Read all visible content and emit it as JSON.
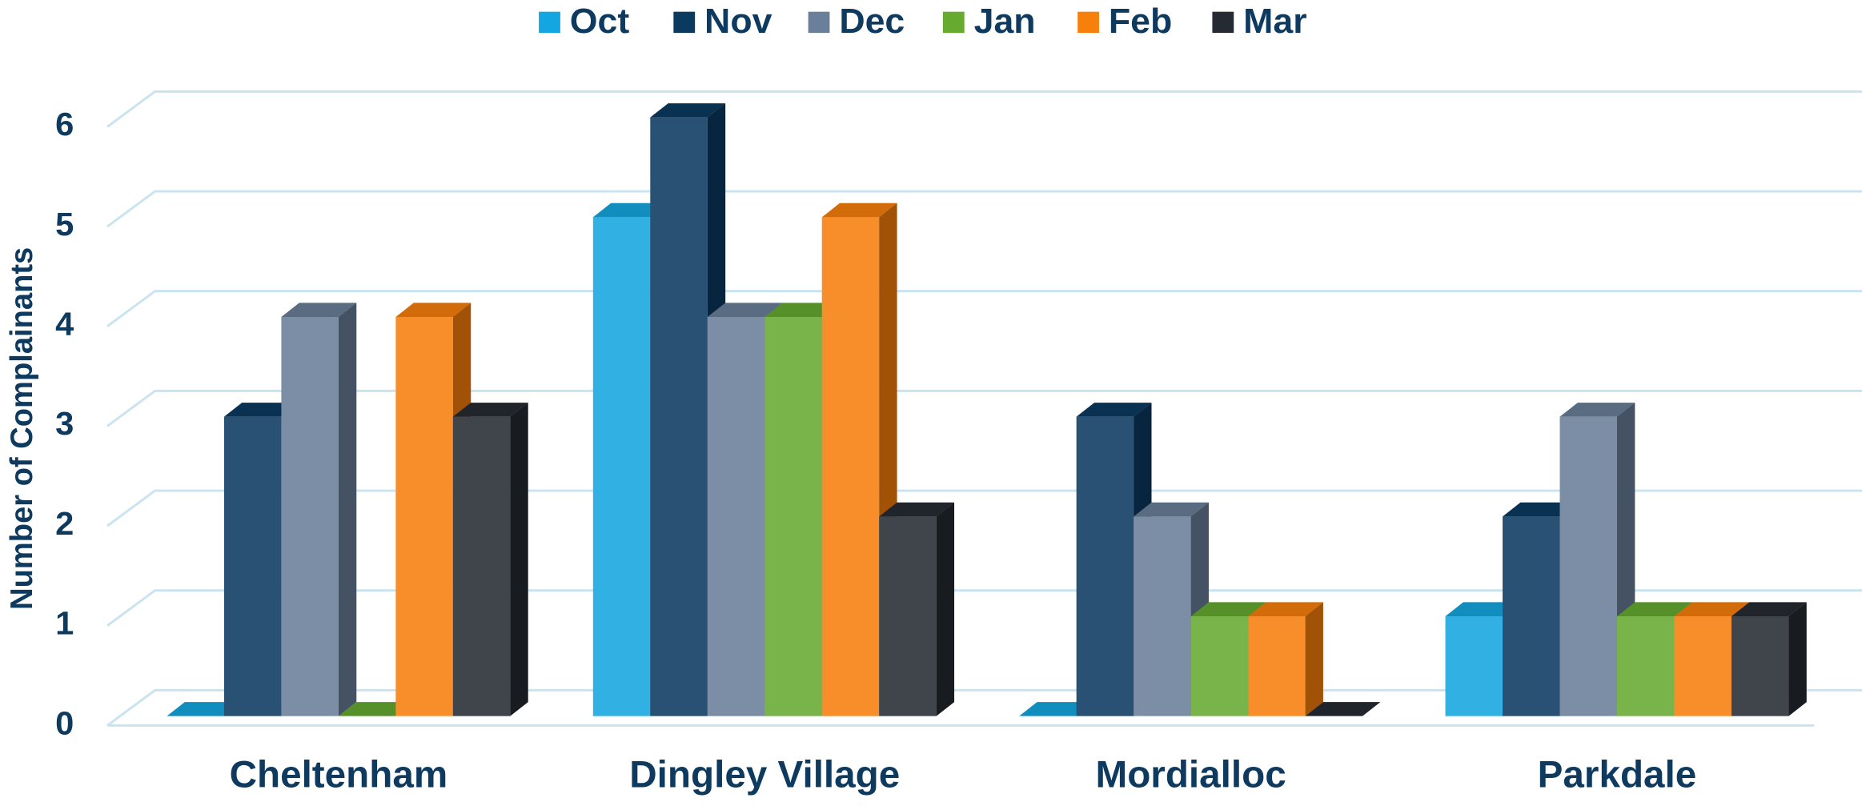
{
  "chart_data": {
    "type": "bar3d",
    "y_label": "Number of Complainants",
    "categories": [
      "Cheltenham",
      "Dingley Village",
      "Mordialloc",
      "Parkdale"
    ],
    "series": [
      {
        "name": "Oct",
        "color": "#14a6e0",
        "values": [
          0,
          5,
          0,
          1
        ]
      },
      {
        "name": "Nov",
        "color": "#0b3a60",
        "values": [
          3,
          6,
          3,
          2
        ]
      },
      {
        "name": "Dec",
        "color": "#6a7f99",
        "values": [
          4,
          4,
          2,
          3
        ]
      },
      {
        "name": "Jan",
        "color": "#66aa30",
        "values": [
          0,
          4,
          1,
          1
        ]
      },
      {
        "name": "Feb",
        "color": "#f77f0c",
        "values": [
          4,
          5,
          1,
          1
        ]
      },
      {
        "name": "Mar",
        "color": "#262b33",
        "values": [
          3,
          2,
          0,
          1
        ]
      }
    ],
    "ylim": [
      0,
      6
    ],
    "yticks": [
      0,
      1,
      2,
      3,
      4,
      5,
      6
    ],
    "grid": true,
    "legend": "top"
  }
}
